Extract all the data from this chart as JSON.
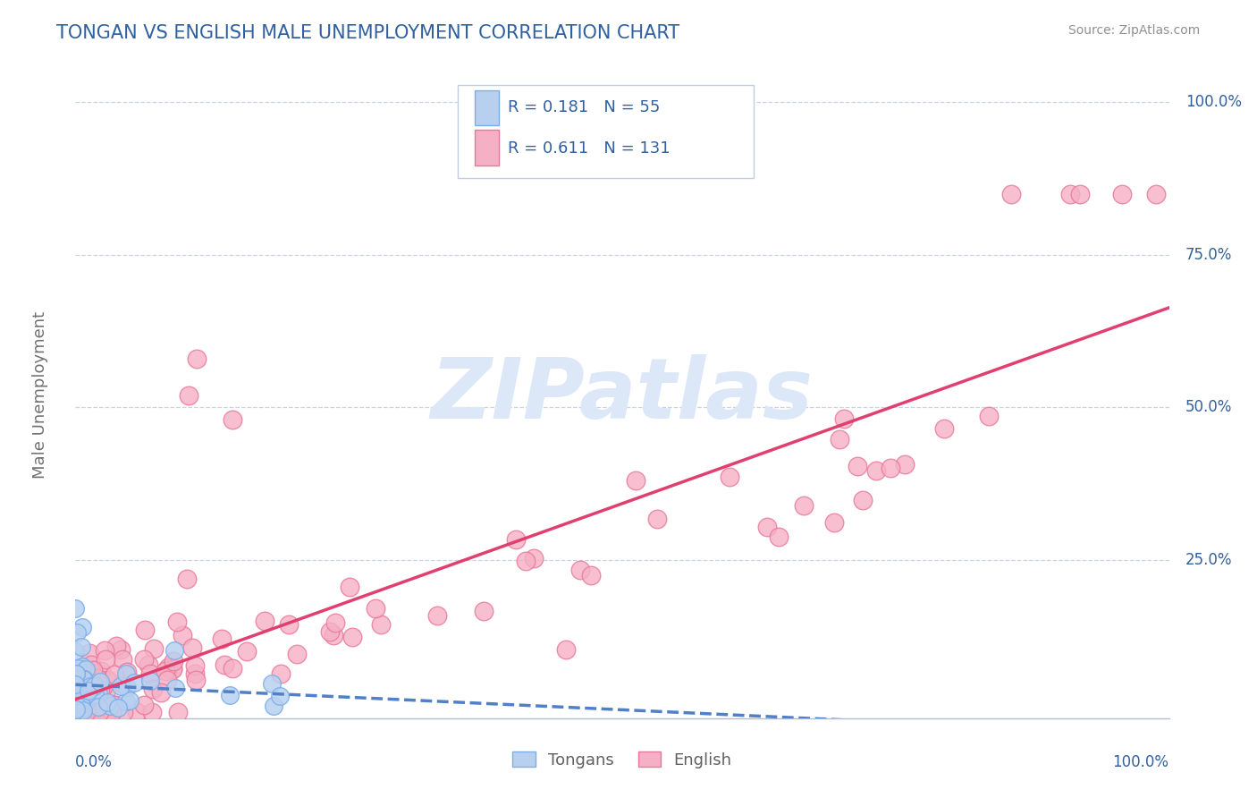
{
  "title": "TONGAN VS ENGLISH MALE UNEMPLOYMENT CORRELATION CHART",
  "source": "Source: ZipAtlas.com",
  "ylabel": "Male Unemployment",
  "tongan_R": 0.181,
  "tongan_N": 55,
  "english_R": 0.611,
  "english_N": 131,
  "tongan_color": "#b8d0f0",
  "english_color": "#f5b0c5",
  "tongan_edge": "#7aaee8",
  "english_edge": "#e87898",
  "title_color": "#3060a0",
  "axis_color": "#3060a0",
  "background_color": "#ffffff",
  "watermark_color": "#dce8f8",
  "grid_color": "#c8d4e4",
  "trend_blue_color": "#5080c8",
  "trend_pink_color": "#e04070",
  "legend_border_color": "#c0cce0"
}
